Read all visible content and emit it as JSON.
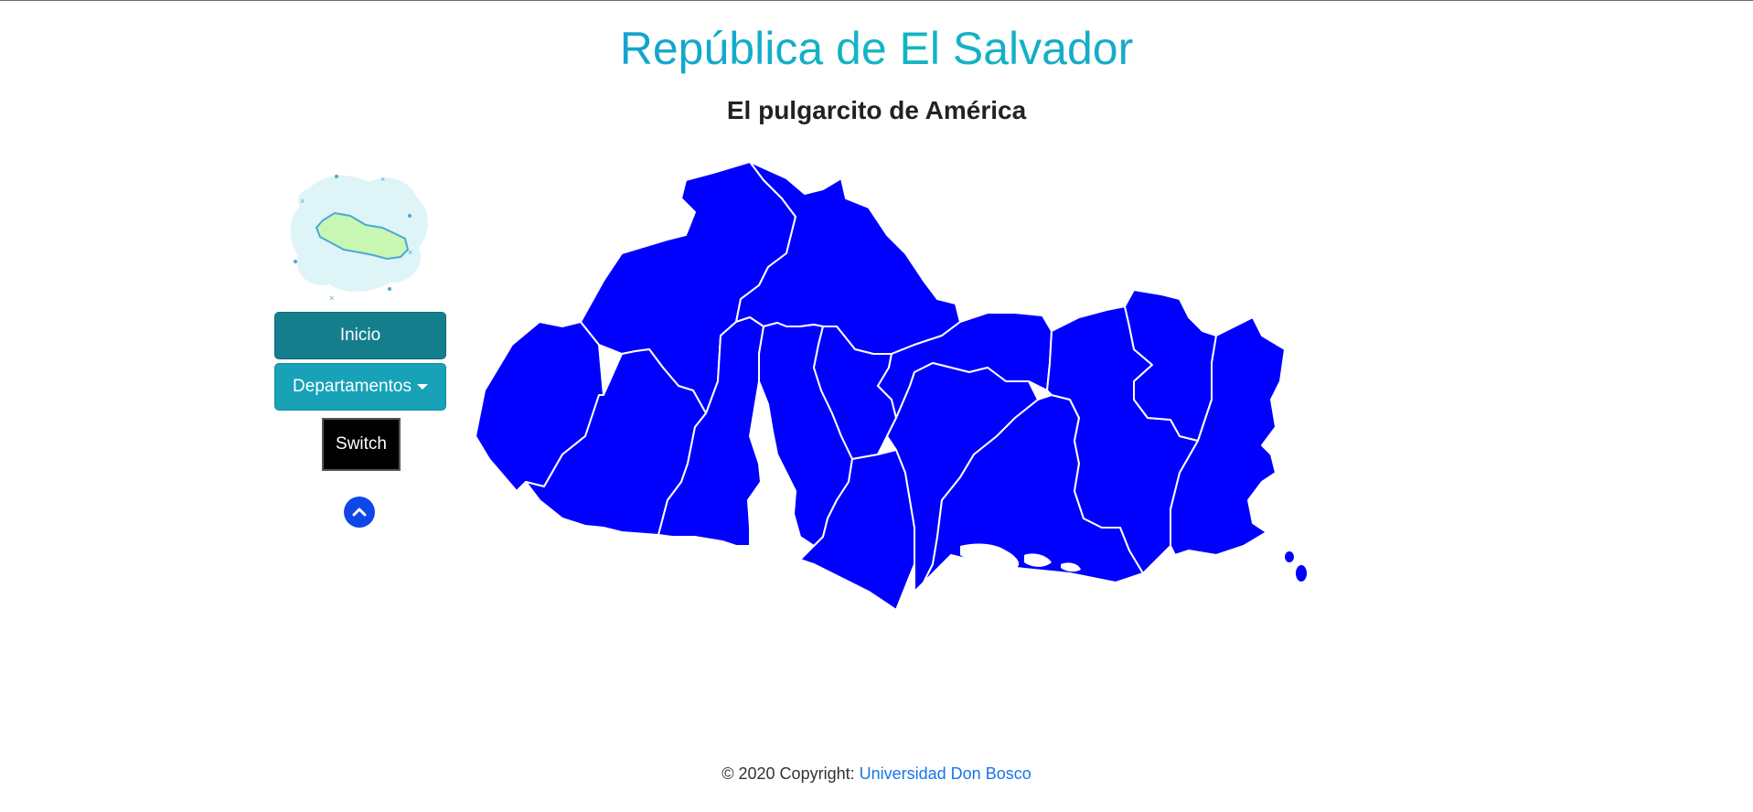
{
  "header": {
    "title": "República de El Salvador",
    "subtitle": "El pulgarcito de América"
  },
  "sidebar": {
    "logo_icon": "el-salvador-map-logo-icon",
    "inicio_label": "Inicio",
    "departamentos_label": "Departamentos",
    "switch_label": "Switch",
    "scroll_up_icon": "chevron-up-icon"
  },
  "map": {
    "fill_color": "#0000ff",
    "border_color": "#ffffff"
  },
  "footer": {
    "copyright_text": "© 2020 Copyright:",
    "link_text": "Universidad Don Bosco",
    "link_color": "#1a73e8"
  },
  "colors": {
    "inicio_button": "#157e8d",
    "departamentos_button": "#17a2b8",
    "switch_button": "#000000",
    "scroll_up_button": "#0d47e8"
  }
}
